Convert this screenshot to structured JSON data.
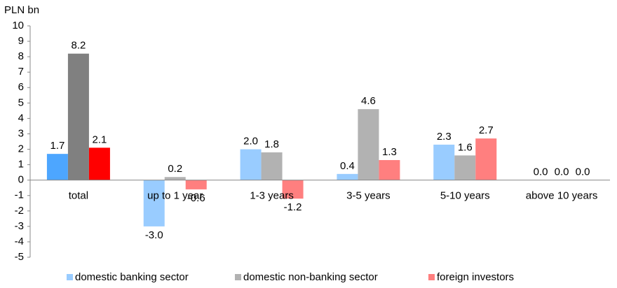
{
  "chart_data": {
    "type": "bar",
    "y_axis_label": "PLN bn",
    "categories": [
      "total",
      "up to 1 year",
      "1-3 years",
      "3-5 years",
      "5-10 years",
      "above 10 years"
    ],
    "series": [
      {
        "name": "domestic banking sector",
        "color": "#99ccff",
        "colors": [
          "#4da6ff",
          "#99ccff",
          "#99ccff",
          "#99ccff",
          "#99ccff",
          "#99ccff"
        ],
        "values": [
          1.7,
          -3.0,
          2.0,
          0.4,
          2.3,
          0.0
        ],
        "value_labels": [
          "1.7",
          "-3.0",
          "2.0",
          "0.4",
          "2.3",
          "0.0"
        ]
      },
      {
        "name": "domestic non-banking sector",
        "color": "#b2b2b2",
        "colors": [
          "#808080",
          "#b2b2b2",
          "#b2b2b2",
          "#b2b2b2",
          "#b2b2b2",
          "#b2b2b2"
        ],
        "values": [
          8.2,
          0.2,
          1.8,
          4.6,
          1.6,
          0.0
        ],
        "value_labels": [
          "8.2",
          "0.2",
          "1.8",
          "4.6",
          "1.6",
          "0.0"
        ]
      },
      {
        "name": "foreign investors",
        "color": "#ff7f7f",
        "colors": [
          "#ff0000",
          "#ff7f7f",
          "#ff7f7f",
          "#ff7f7f",
          "#ff7f7f",
          "#ff7f7f"
        ],
        "values": [
          2.1,
          -0.6,
          -1.2,
          1.3,
          2.7,
          0.0
        ],
        "value_labels": [
          "2.1",
          "-0.6",
          "-1.2",
          "1.3",
          "2.7",
          "0.0"
        ]
      }
    ],
    "ylim": [
      -5,
      10
    ],
    "yticks": [
      -5,
      -4,
      -3,
      -2,
      -1,
      0,
      1,
      2,
      3,
      4,
      5,
      6,
      7,
      8,
      9,
      10
    ],
    "legend": "bottom",
    "grid": false
  }
}
